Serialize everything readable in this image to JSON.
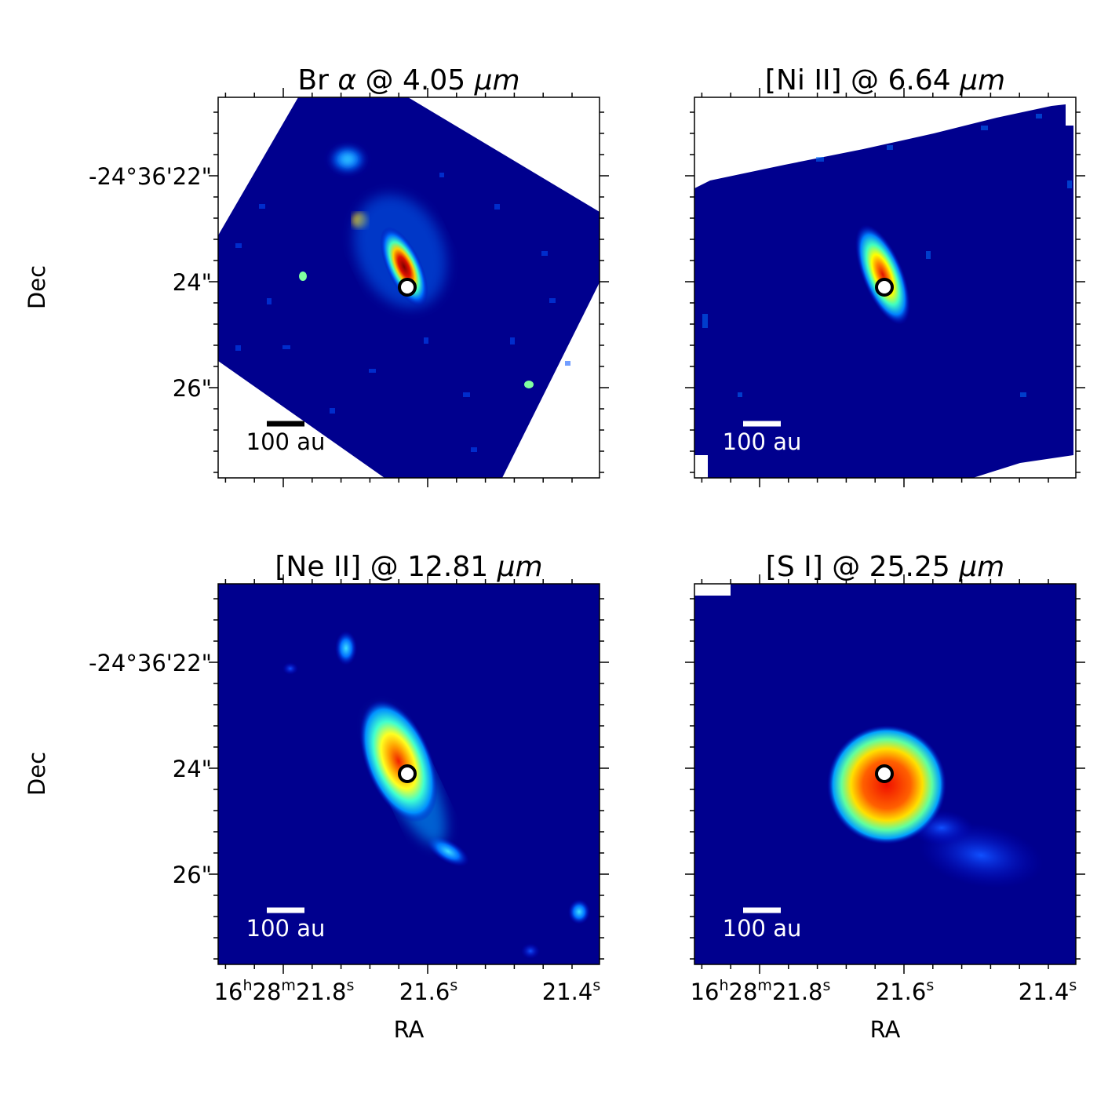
{
  "figure": {
    "ylabel": "Dec",
    "xlabel": "RA",
    "dec_ticks": [
      "-24°36'22\"",
      "24\"",
      "26\""
    ],
    "ra_ticks": [
      {
        "main": "16",
        "h": "h",
        "mid": "28",
        "m": "m",
        "tail": "21.8",
        "s": "s"
      },
      {
        "main": "21.6",
        "s": "s"
      },
      {
        "main": "21.4",
        "s": "s"
      }
    ],
    "marker_colors": {
      "fill": "#ffffff",
      "edge": "#000000"
    }
  },
  "chart_data": [
    {
      "type": "heatmap",
      "title": "Br α @ 4.05 μm",
      "title_parts": {
        "pre": "Br ",
        "greek": "α",
        "mid": " @ 4.05 ",
        "unit": "μm"
      },
      "colormap": "jet",
      "scalebar": {
        "label": "100 au",
        "color": "#000000"
      },
      "footprint": "rotated-square",
      "emission_peak": {
        "ra_s": 21.635,
        "dec_offset_arcsec": 23.8
      },
      "source_position": {
        "ra_s": 21.625,
        "dec_offset_arcsec": 24.1
      }
    },
    {
      "type": "heatmap",
      "title": "[Ni II] @ 6.64 μm",
      "title_parts": {
        "pre": "",
        "greek": "",
        "mid": "[Ni II] @ 6.64 ",
        "unit": "μm"
      },
      "colormap": "jet",
      "scalebar": {
        "label": "100 au",
        "color": "#ffffff"
      },
      "footprint": "stepped-top",
      "emission_peak": {
        "ra_s": 21.63,
        "dec_offset_arcsec": 24.0
      },
      "source_position": {
        "ra_s": 21.625,
        "dec_offset_arcsec": 24.1
      }
    },
    {
      "type": "heatmap",
      "title": "[Ne II] @ 12.81 μm",
      "title_parts": {
        "pre": "",
        "greek": "",
        "mid": "[Ne II] @ 12.81 ",
        "unit": "μm"
      },
      "colormap": "jet",
      "scalebar": {
        "label": "100 au",
        "color": "#ffffff"
      },
      "footprint": "full",
      "emission_peak": {
        "ra_s": 21.64,
        "dec_offset_arcsec": 23.8
      },
      "source_position": {
        "ra_s": 21.625,
        "dec_offset_arcsec": 24.1
      }
    },
    {
      "type": "heatmap",
      "title": "[S I] @ 25.25 μm",
      "title_parts": {
        "pre": "",
        "greek": "",
        "mid": "[S I] @ 25.25 ",
        "unit": "μm"
      },
      "colormap": "jet",
      "scalebar": {
        "label": "100 au",
        "color": "#ffffff"
      },
      "footprint": "full",
      "emission_peak": {
        "ra_s": 21.625,
        "dec_offset_arcsec": 24.3
      },
      "source_position": {
        "ra_s": 21.625,
        "dec_offset_arcsec": 24.1
      }
    }
  ]
}
